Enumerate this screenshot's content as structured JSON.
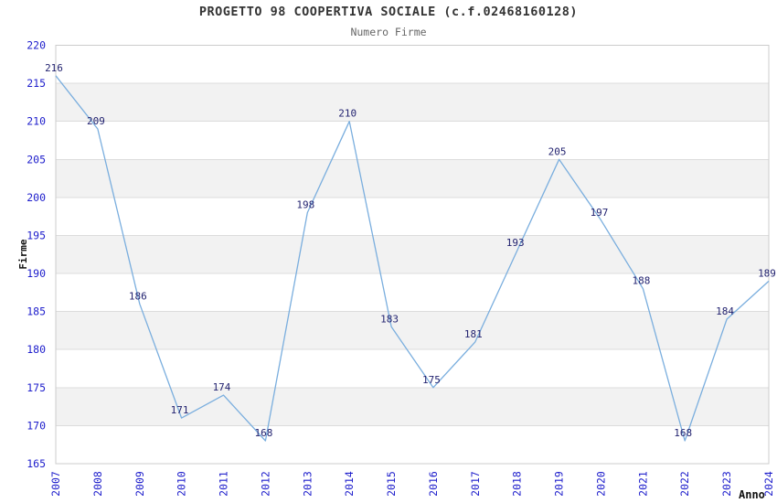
{
  "chart_data": {
    "type": "line",
    "title": "PROGETTO 98 COOPERTIVA SOCIALE (c.f.02468160128)",
    "subtitle": "Numero Firme",
    "xlabel": "Anno",
    "ylabel": "Firme",
    "categories": [
      "2007",
      "2008",
      "2009",
      "2010",
      "2011",
      "2012",
      "2013",
      "2014",
      "2015",
      "2016",
      "2017",
      "2018",
      "2019",
      "2020",
      "2021",
      "2022",
      "2023",
      "2024"
    ],
    "values": [
      216,
      209,
      186,
      171,
      174,
      168,
      198,
      210,
      183,
      175,
      181,
      193,
      205,
      197,
      188,
      168,
      184,
      189
    ],
    "ylim": [
      165,
      220
    ],
    "y_tick_step": 5,
    "y_tick_labels": [
      "165",
      "170",
      "175",
      "180",
      "185",
      "190",
      "195",
      "200",
      "205",
      "210",
      "215",
      "220"
    ],
    "grid": "horizontal-only",
    "legend": "none",
    "band_pattern": "alternating gray bands between gridlines, gray on 170-175, 180-185, 190-195, 200-205, 210-215",
    "colors": {
      "line": "#7aaede",
      "tick_labels": "#2020cc",
      "point_labels": "#232370",
      "band": "#f2f2f2",
      "gridline": "#dcdcdc",
      "frame": "#cccccc",
      "title": "#333333",
      "subtitle": "#666666",
      "axis_label": "#111111",
      "background": "#ffffff"
    }
  }
}
